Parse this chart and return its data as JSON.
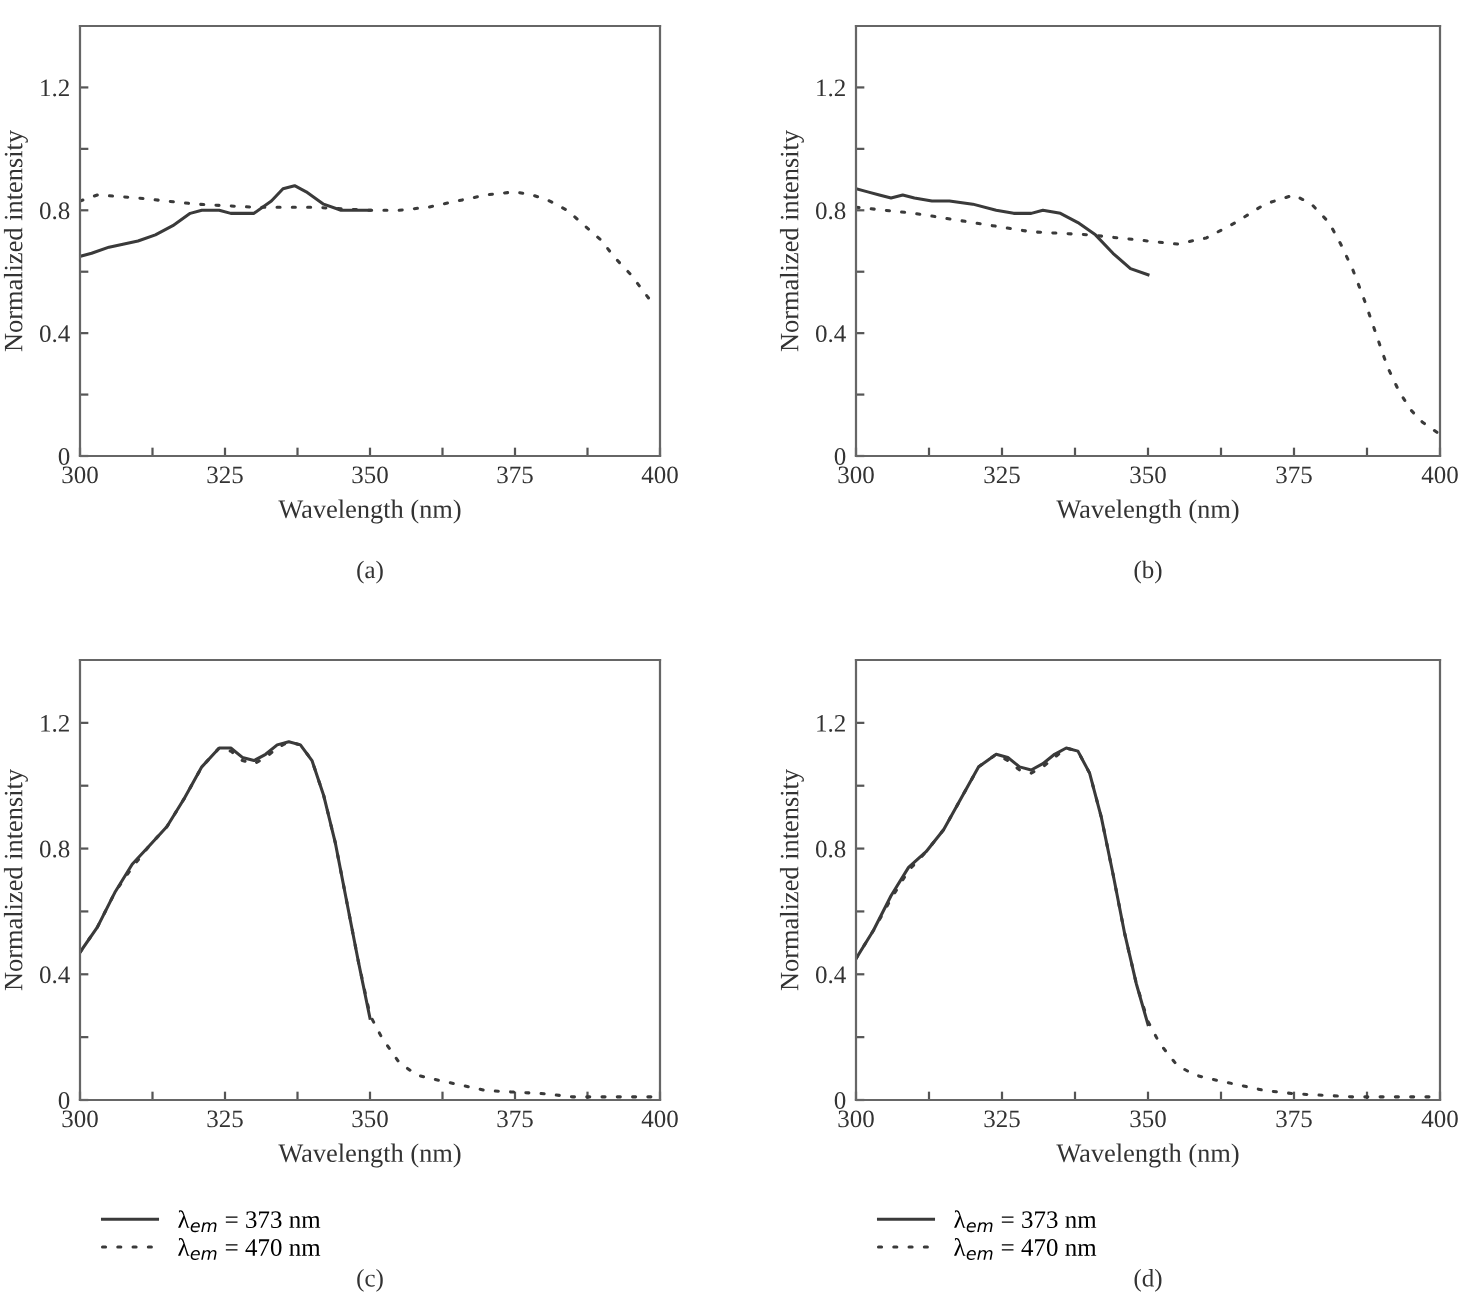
{
  "chart_data": [
    {
      "type": "line",
      "xlabel": "Wavelength (nm)",
      "ylabel": "Normalized intensity",
      "annotations": [
        "(a)"
      ],
      "xlim": [
        300,
        400
      ],
      "ylim": [
        0,
        1.4
      ],
      "xticks": [
        300,
        {
          "value": 312.5,
          "label": null
        },
        325,
        {
          "value": 337.5,
          "label": null
        },
        350,
        {
          "value": 362.5,
          "label": null
        },
        375,
        {
          "value": 387.5,
          "label": null
        },
        400
      ],
      "yticks": [
        0,
        {
          "value": 0.2,
          "label": null
        },
        0.4,
        {
          "value": 0.6,
          "label": null
        },
        0.8,
        {
          "value": 1.0,
          "label": null
        },
        1.2
      ],
      "grid": false,
      "series": [
        {
          "color": "#3a3a3a",
          "line_style": "solid",
          "x": [
            300,
            302,
            305,
            310,
            313,
            316,
            319,
            321,
            324,
            326,
            330,
            333,
            335,
            337,
            339,
            342,
            345,
            350
          ],
          "values": [
            0.65,
            0.66,
            0.68,
            0.7,
            0.72,
            0.75,
            0.79,
            0.8,
            0.8,
            0.79,
            0.79,
            0.83,
            0.87,
            0.88,
            0.86,
            0.82,
            0.8,
            0.8
          ]
        },
        {
          "color": "#3a3a3a",
          "line_style": "dotted",
          "x": [
            300,
            303,
            310,
            320,
            330,
            340,
            350,
            355,
            360,
            365,
            370,
            375,
            378,
            381,
            384,
            387,
            390,
            392,
            395,
            397,
            399
          ],
          "values": [
            0.83,
            0.85,
            0.84,
            0.82,
            0.81,
            0.81,
            0.8,
            0.8,
            0.81,
            0.83,
            0.85,
            0.86,
            0.85,
            0.83,
            0.8,
            0.75,
            0.7,
            0.65,
            0.59,
            0.54,
            0.49
          ]
        }
      ]
    },
    {
      "type": "line",
      "xlabel": "Wavelength (nm)",
      "ylabel": "Normalized intensity",
      "annotations": [
        "(b)"
      ],
      "xlim": [
        300,
        400
      ],
      "ylim": [
        0,
        1.4
      ],
      "xticks": [
        300,
        {
          "value": 312.5,
          "label": null
        },
        325,
        {
          "value": 337.5,
          "label": null
        },
        350,
        {
          "value": 362.5,
          "label": null
        },
        375,
        {
          "value": 387.5,
          "label": null
        },
        400
      ],
      "yticks": [
        0,
        {
          "value": 0.2,
          "label": null
        },
        0.4,
        {
          "value": 0.6,
          "label": null
        },
        0.8,
        {
          "value": 1.0,
          "label": null
        },
        1.2
      ],
      "grid": false,
      "series": [
        {
          "color": "#3a3a3a",
          "line_style": "solid",
          "x": [
            300,
            302,
            304,
            306,
            308,
            310,
            313,
            316,
            320,
            324,
            327,
            330,
            332,
            335,
            338,
            341,
            344,
            347,
            350
          ],
          "values": [
            0.87,
            0.86,
            0.85,
            0.84,
            0.85,
            0.84,
            0.83,
            0.83,
            0.82,
            0.8,
            0.79,
            0.79,
            0.8,
            0.79,
            0.76,
            0.72,
            0.66,
            0.61,
            0.59
          ]
        },
        {
          "color": "#3a3a3a",
          "line_style": "dotted",
          "x": [
            300,
            310,
            320,
            330,
            340,
            350,
            355,
            360,
            365,
            370,
            375,
            378,
            381,
            383,
            385,
            387,
            389,
            391,
            393,
            395,
            397,
            400
          ],
          "values": [
            0.81,
            0.79,
            0.76,
            0.73,
            0.72,
            0.7,
            0.69,
            0.71,
            0.76,
            0.82,
            0.85,
            0.82,
            0.76,
            0.69,
            0.61,
            0.51,
            0.4,
            0.29,
            0.21,
            0.15,
            0.11,
            0.07
          ]
        }
      ]
    },
    {
      "type": "line",
      "xlabel": "Wavelength (nm)",
      "ylabel": "Normalized intensity",
      "annotations": [
        "(c)"
      ],
      "xlim": [
        300,
        400
      ],
      "ylim": [
        0,
        1.4
      ],
      "xticks": [
        300,
        {
          "value": 312.5,
          "label": null
        },
        325,
        {
          "value": 337.5,
          "label": null
        },
        350,
        {
          "value": 362.5,
          "label": null
        },
        375,
        {
          "value": 387.5,
          "label": null
        },
        400
      ],
      "yticks": [
        0,
        {
          "value": 0.2,
          "label": null
        },
        0.4,
        {
          "value": 0.6,
          "label": null
        },
        0.8,
        {
          "value": 1.0,
          "label": null
        },
        1.2
      ],
      "grid": false,
      "legend": "bottom left",
      "series": [
        {
          "name": "λ$_{em}$ = 373 nm",
          "color": "#3a3a3a",
          "line_style": "solid",
          "x": [
            300,
            303,
            306,
            309,
            312,
            315,
            318,
            321,
            324,
            326,
            328,
            330,
            332,
            334,
            336,
            338,
            340,
            342,
            344,
            346,
            348,
            350
          ],
          "values": [
            0.47,
            0.55,
            0.66,
            0.75,
            0.81,
            0.87,
            0.96,
            1.06,
            1.12,
            1.12,
            1.09,
            1.08,
            1.1,
            1.13,
            1.14,
            1.13,
            1.08,
            0.97,
            0.82,
            0.63,
            0.44,
            0.26
          ]
        },
        {
          "name": "λ$_{em}$ = 470 nm",
          "color": "#3a3a3a",
          "line_style": "dotted",
          "x": [
            300,
            303,
            306,
            309,
            312,
            315,
            318,
            321,
            324,
            326,
            328,
            330,
            332,
            334,
            336,
            338,
            340,
            342,
            344,
            346,
            348,
            350,
            352,
            355,
            358,
            360,
            365,
            370,
            375,
            380,
            385,
            390,
            400
          ],
          "values": [
            0.47,
            0.55,
            0.66,
            0.74,
            0.81,
            0.87,
            0.96,
            1.06,
            1.12,
            1.11,
            1.08,
            1.07,
            1.09,
            1.12,
            1.14,
            1.13,
            1.08,
            0.97,
            0.82,
            0.63,
            0.44,
            0.27,
            0.2,
            0.12,
            0.08,
            0.07,
            0.05,
            0.03,
            0.025,
            0.02,
            0.01,
            0.01,
            0.01
          ]
        }
      ]
    },
    {
      "type": "line",
      "xlabel": "Wavelength (nm)",
      "ylabel": "Normalized intensity",
      "annotations": [
        "(d)"
      ],
      "xlim": [
        300,
        400
      ],
      "ylim": [
        0,
        1.4
      ],
      "xticks": [
        300,
        {
          "value": 312.5,
          "label": null
        },
        325,
        {
          "value": 337.5,
          "label": null
        },
        350,
        {
          "value": 362.5,
          "label": null
        },
        375,
        {
          "value": 387.5,
          "label": null
        },
        400
      ],
      "yticks": [
        0,
        {
          "value": 0.2,
          "label": null
        },
        0.4,
        {
          "value": 0.6,
          "label": null
        },
        0.8,
        {
          "value": 1.0,
          "label": null
        },
        1.2
      ],
      "grid": false,
      "legend": "bottom left",
      "series": [
        {
          "name": "λ$_{em}$ = 373 nm",
          "color": "#3a3a3a",
          "line_style": "solid",
          "x": [
            300,
            303,
            306,
            309,
            312,
            315,
            318,
            321,
            324,
            326,
            328,
            330,
            332,
            334,
            336,
            338,
            340,
            342,
            344,
            346,
            348,
            350
          ],
          "values": [
            0.45,
            0.54,
            0.65,
            0.74,
            0.79,
            0.86,
            0.96,
            1.06,
            1.1,
            1.09,
            1.06,
            1.05,
            1.07,
            1.1,
            1.12,
            1.11,
            1.04,
            0.9,
            0.72,
            0.53,
            0.37,
            0.24
          ]
        },
        {
          "name": "λ$_{em}$ = 470 nm",
          "color": "#3a3a3a",
          "line_style": "dotted",
          "x": [
            300,
            303,
            306,
            309,
            312,
            315,
            318,
            321,
            324,
            326,
            328,
            330,
            332,
            334,
            336,
            338,
            340,
            342,
            344,
            346,
            348,
            350,
            352,
            355,
            358,
            360,
            365,
            370,
            375,
            380,
            385,
            390,
            400
          ],
          "values": [
            0.45,
            0.54,
            0.64,
            0.73,
            0.79,
            0.86,
            0.96,
            1.06,
            1.1,
            1.08,
            1.05,
            1.04,
            1.06,
            1.09,
            1.12,
            1.11,
            1.04,
            0.9,
            0.72,
            0.53,
            0.37,
            0.25,
            0.18,
            0.11,
            0.08,
            0.07,
            0.05,
            0.03,
            0.02,
            0.015,
            0.01,
            0.01,
            0.01
          ]
        }
      ]
    }
  ]
}
